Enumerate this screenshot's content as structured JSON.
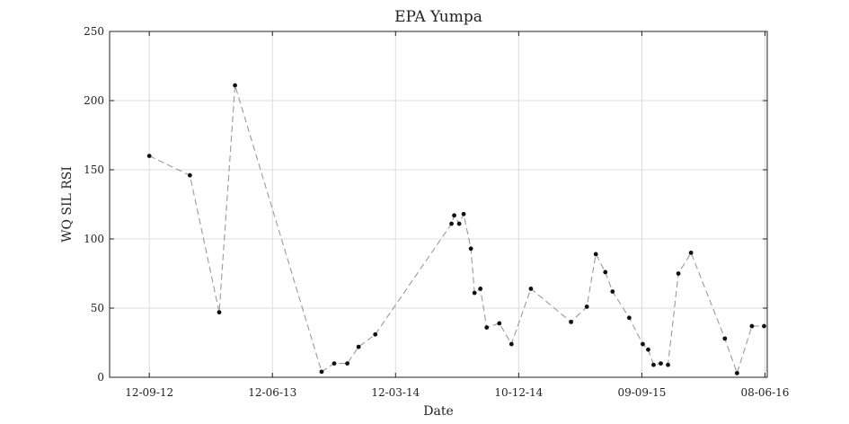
{
  "chart_data": {
    "type": "line",
    "title": "EPA Yumpa",
    "xlabel": "Date",
    "ylabel": "WQ SIL RSI",
    "x_type": "date",
    "xlim": [
      "2012-06-16",
      "2016-06-13"
    ],
    "ylim": [
      0,
      250
    ],
    "grid": true,
    "line_style": "dashed",
    "line_color": "#9a9a9a",
    "marker_color": "#111111",
    "x_ticks": [
      {
        "date": "2012-09-12",
        "label": "12-09-12"
      },
      {
        "date": "2013-06-12",
        "label": "12-06-13"
      },
      {
        "date": "2014-03-12",
        "label": "12-03-14"
      },
      {
        "date": "2014-12-10",
        "label": "10-12-14"
      },
      {
        "date": "2015-09-09",
        "label": "09-09-15"
      },
      {
        "date": "2016-06-08",
        "label": "08-06-16"
      }
    ],
    "y_ticks": [
      0,
      50,
      100,
      150,
      200,
      250
    ],
    "series": [
      {
        "points": [
          {
            "x": "2012-09-12",
            "y": 160
          },
          {
            "x": "2012-12-11",
            "y": 146
          },
          {
            "x": "2013-02-14",
            "y": 47
          },
          {
            "x": "2013-03-21",
            "y": 211
          },
          {
            "x": "2013-09-29",
            "y": 4
          },
          {
            "x": "2013-10-27",
            "y": 10
          },
          {
            "x": "2013-11-25",
            "y": 10
          },
          {
            "x": "2013-12-20",
            "y": 22
          },
          {
            "x": "2014-01-26",
            "y": 31
          },
          {
            "x": "2014-07-14",
            "y": 111
          },
          {
            "x": "2014-07-20",
            "y": 117
          },
          {
            "x": "2014-07-31",
            "y": 111
          },
          {
            "x": "2014-08-10",
            "y": 118
          },
          {
            "x": "2014-08-26",
            "y": 93
          },
          {
            "x": "2014-09-03",
            "y": 61
          },
          {
            "x": "2014-09-16",
            "y": 64
          },
          {
            "x": "2014-09-30",
            "y": 36
          },
          {
            "x": "2014-10-28",
            "y": 39
          },
          {
            "x": "2014-11-24",
            "y": 24
          },
          {
            "x": "2015-01-06",
            "y": 64
          },
          {
            "x": "2015-04-05",
            "y": 40
          },
          {
            "x": "2015-05-10",
            "y": 51
          },
          {
            "x": "2015-05-30",
            "y": 89
          },
          {
            "x": "2015-06-20",
            "y": 76
          },
          {
            "x": "2015-07-06",
            "y": 62
          },
          {
            "x": "2015-08-12",
            "y": 43
          },
          {
            "x": "2015-09-11",
            "y": 24
          },
          {
            "x": "2015-09-23",
            "y": 20
          },
          {
            "x": "2015-10-05",
            "y": 9
          },
          {
            "x": "2015-10-21",
            "y": 10
          },
          {
            "x": "2015-11-06",
            "y": 9
          },
          {
            "x": "2015-11-29",
            "y": 75
          },
          {
            "x": "2015-12-27",
            "y": 90
          },
          {
            "x": "2016-03-11",
            "y": 28
          },
          {
            "x": "2016-04-07",
            "y": 3
          },
          {
            "x": "2016-05-10",
            "y": 37
          },
          {
            "x": "2016-06-06",
            "y": 37
          }
        ]
      }
    ]
  }
}
